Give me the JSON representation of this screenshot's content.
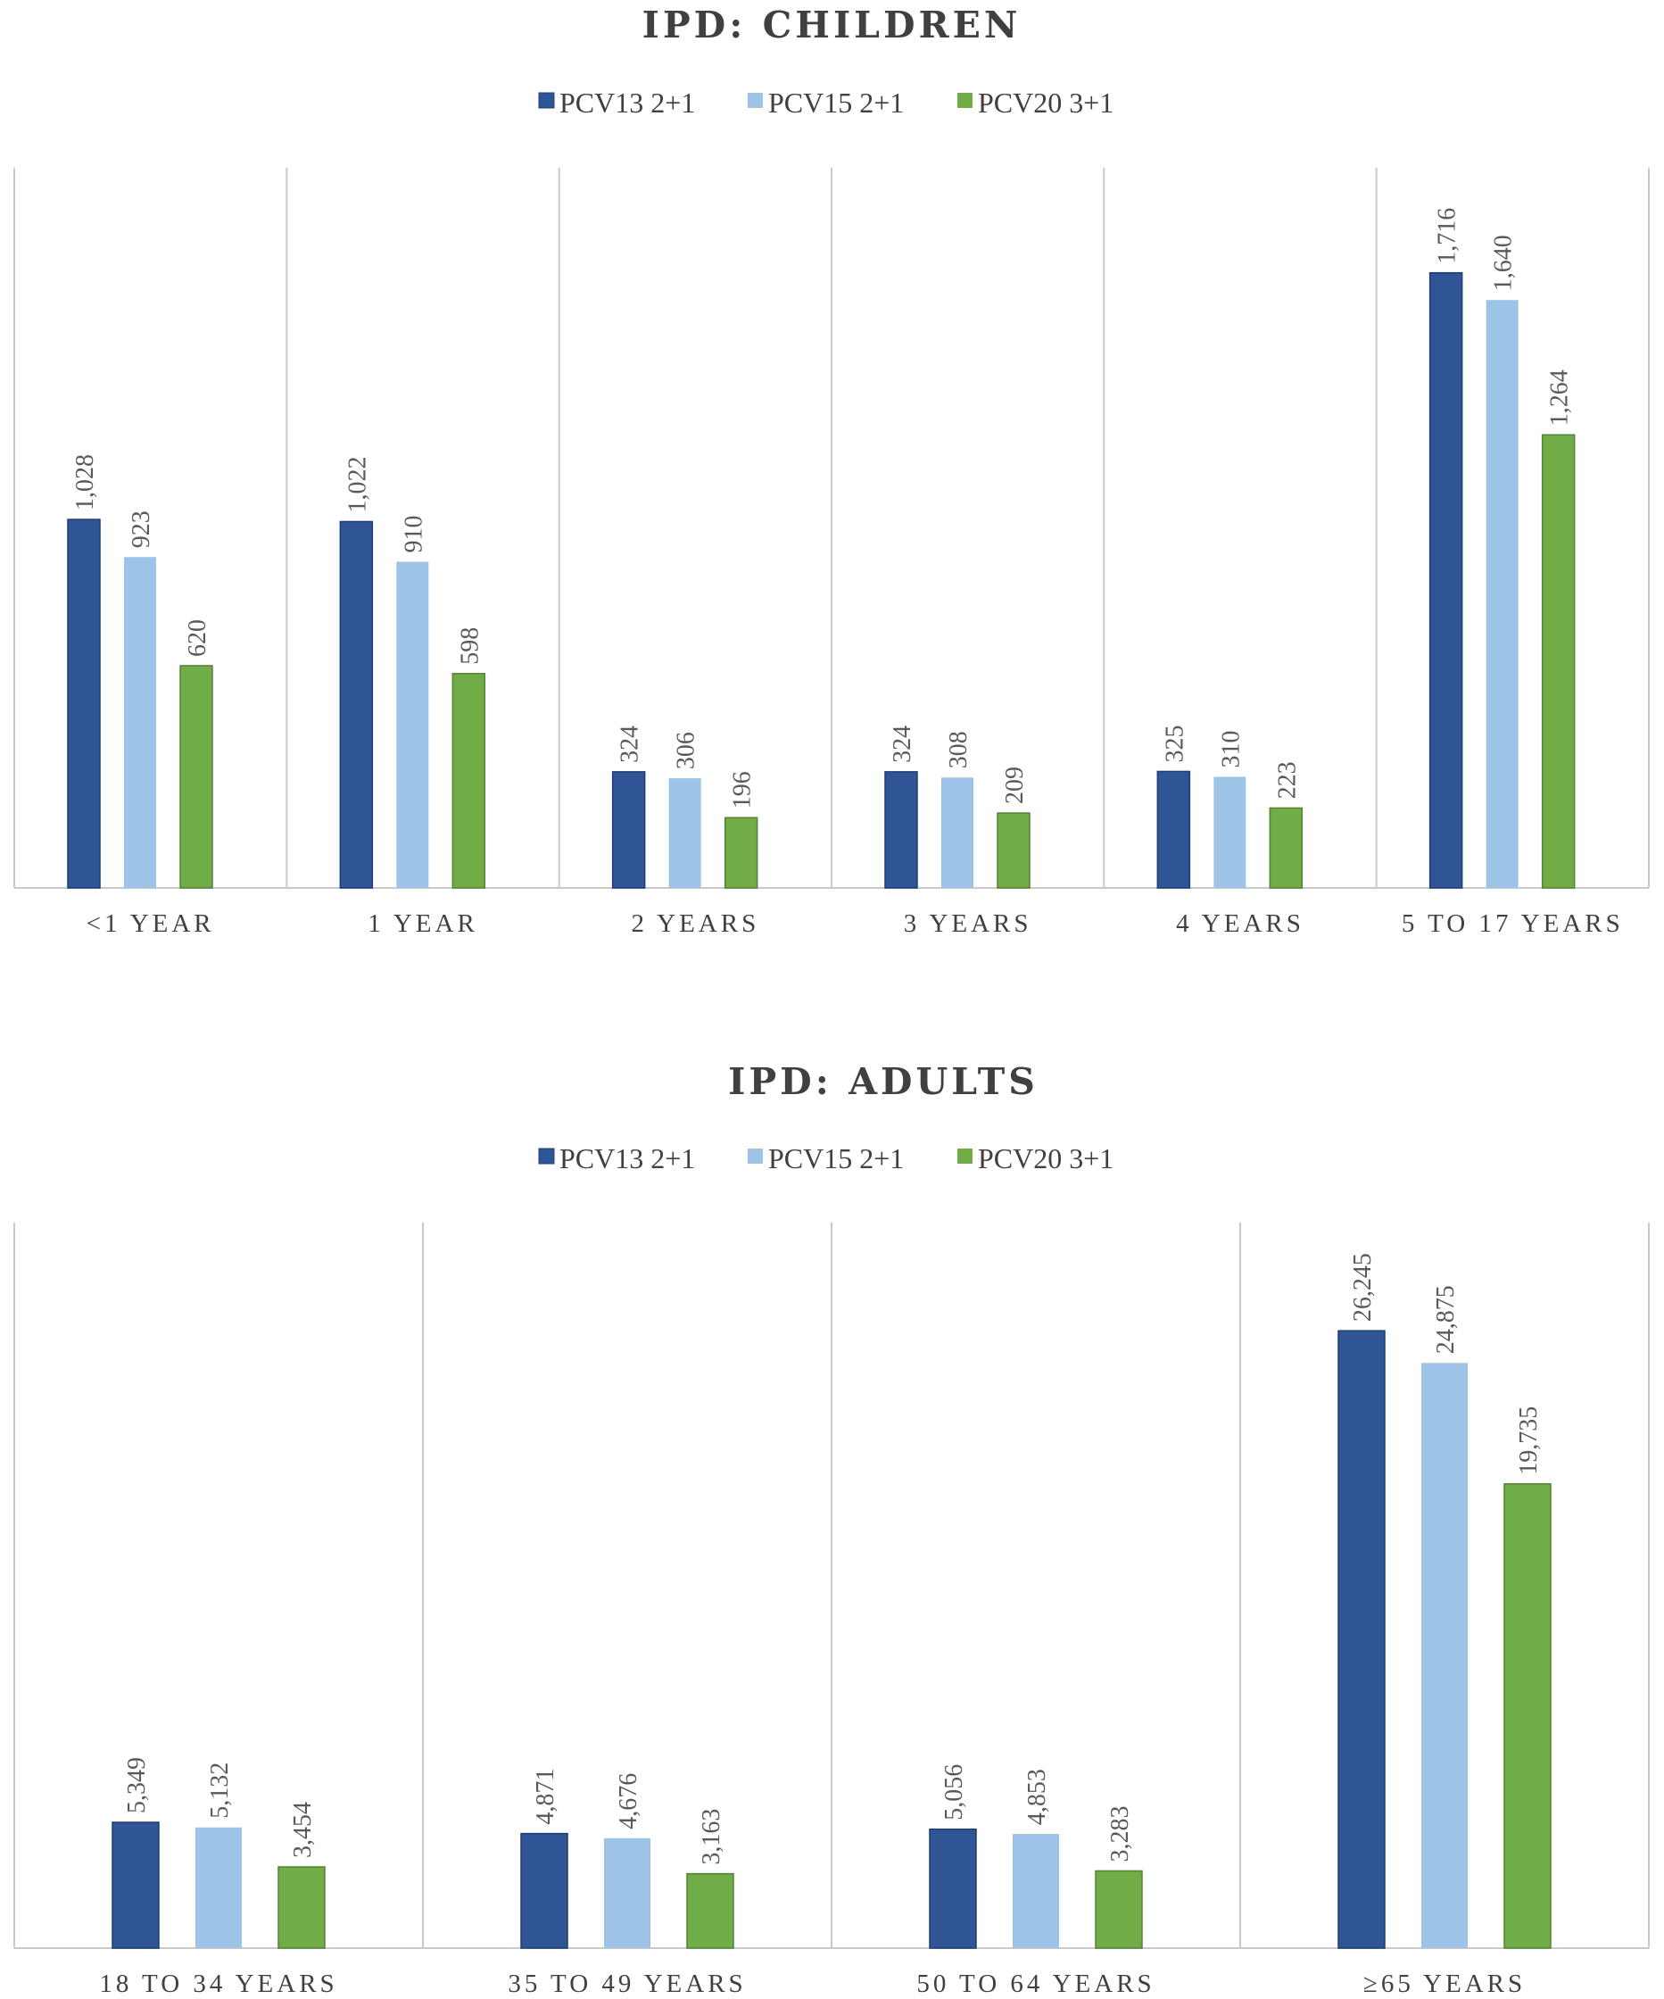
{
  "chart_data": [
    {
      "type": "bar",
      "title": "IPD: CHILDREN",
      "categories": [
        "<1 YEAR",
        "1 YEAR",
        "2 YEARS",
        "3 YEARS",
        "4 YEARS",
        "5 TO 17 YEARS"
      ],
      "series": [
        {
          "name": "PCV13 2+1",
          "color": "#2f5597",
          "values": [
            1028,
            1022,
            324,
            324,
            325,
            1716
          ],
          "labels": [
            "1,028",
            "1,022",
            "324",
            "324",
            "325",
            "1,716"
          ]
        },
        {
          "name": "PCV15 2+1",
          "color": "#9dc3e6",
          "values": [
            923,
            910,
            306,
            308,
            310,
            1640
          ],
          "labels": [
            "923",
            "910",
            "306",
            "308",
            "310",
            "1,640"
          ]
        },
        {
          "name": "PCV20 3+1",
          "color": "#70ad47",
          "values": [
            620,
            598,
            196,
            209,
            223,
            1264
          ],
          "labels": [
            "620",
            "598",
            "196",
            "209",
            "223",
            "1,264"
          ]
        }
      ],
      "xlabel": "",
      "ylabel": "",
      "ylim": [
        0,
        2000
      ],
      "grid": false,
      "legend": "top-center"
    },
    {
      "type": "bar",
      "title": "IPD: ADULTS",
      "categories": [
        "18 TO 34 YEARS",
        "35 TO 49 YEARS",
        "50 TO 64 YEARS",
        "≥65 YEARS"
      ],
      "series": [
        {
          "name": "PCV13 2+1",
          "color": "#2f5597",
          "values": [
            5349,
            4871,
            5056,
            26245
          ],
          "labels": [
            "5,349",
            "4,871",
            "5,056",
            "26,245"
          ]
        },
        {
          "name": "PCV15 2+1",
          "color": "#9dc3e6",
          "values": [
            5132,
            4676,
            4853,
            24875
          ],
          "labels": [
            "5,132",
            "4,676",
            "4,853",
            "24,875"
          ]
        },
        {
          "name": "PCV20 3+1",
          "color": "#70ad47",
          "values": [
            3454,
            3163,
            3283,
            19735
          ],
          "labels": [
            "3,454",
            "3,163",
            "3,283",
            "19,735"
          ]
        }
      ],
      "xlabel": "",
      "ylabel": "",
      "ylim": [
        0,
        30000
      ],
      "grid": false,
      "legend": "top-center"
    }
  ]
}
